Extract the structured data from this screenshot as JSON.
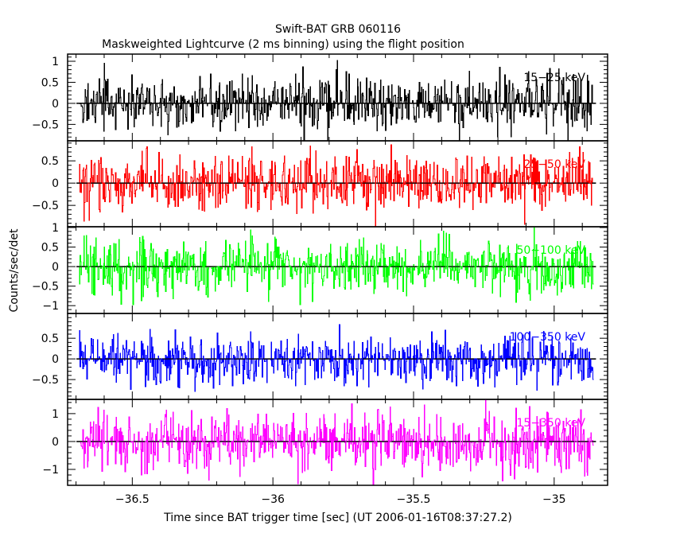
{
  "chart_data": {
    "type": "line",
    "title": "Swift-BAT GRB 060116",
    "subtitle": "Maskweighted Lightcurve (2 ms binning) using the flight position",
    "xlabel": "Time since BAT trigger time [sec] (UT 2006-01-16T08:37:27.2)",
    "ylabel": "Counts/sec/det",
    "xlim": [
      -36.73,
      -34.81
    ],
    "x_ticks": [
      -36.5,
      -36,
      -35.5,
      -35
    ],
    "x_tick_labels": [
      "−36.5",
      "−36",
      "−35.5",
      "−35"
    ],
    "data_range": [
      -36.69,
      -34.86
    ],
    "bin_size_sec": 0.002,
    "grid": false,
    "panels": [
      {
        "name": "15-25 keV",
        "label": "15−25 keV",
        "color": "#000000",
        "ylim": [
          -0.89,
          1.17
        ],
        "y_ticks": [
          -0.5,
          0,
          0.5,
          1
        ],
        "y_tick_labels": [
          "−0.5",
          "0",
          "0.5",
          "1"
        ],
        "noise_amplitude": 0.35,
        "seed": 11
      },
      {
        "name": "25-50 keV",
        "label": "25−50 keV",
        "color": "#ff0000",
        "ylim": [
          -0.98,
          0.95
        ],
        "y_ticks": [
          -0.5,
          0,
          0.5
        ],
        "y_tick_labels": [
          "−0.5",
          "0",
          "0.5"
        ],
        "noise_amplitude": 0.33,
        "seed": 23
      },
      {
        "name": "50-100 keV",
        "label": "50−100 keV",
        "color": "#00ff00",
        "ylim": [
          -1.2,
          1.02
        ],
        "y_ticks": [
          -1,
          -0.5,
          0,
          0.5,
          1
        ],
        "y_tick_labels": [
          "−1",
          "−0.5",
          "0",
          "0.5",
          "1"
        ],
        "noise_amplitude": 0.38,
        "seed": 37
      },
      {
        "name": "100-350 keV",
        "label": "100−350 keV",
        "color": "#0000ff",
        "ylim": [
          -0.98,
          1.1
        ],
        "y_ticks": [
          -0.5,
          0,
          0.5
        ],
        "y_tick_labels": [
          "−0.5",
          "0",
          "0.5"
        ],
        "noise_amplitude": 0.3,
        "seed": 53
      },
      {
        "name": "15-350 keV",
        "label": "15−350 keV",
        "color": "#ff00ff",
        "ylim": [
          -1.57,
          1.51
        ],
        "y_ticks": [
          -1,
          0,
          1
        ],
        "y_tick_labels": [
          "−1",
          "0",
          "1"
        ],
        "noise_amplitude": 0.55,
        "seed": 71
      }
    ]
  }
}
